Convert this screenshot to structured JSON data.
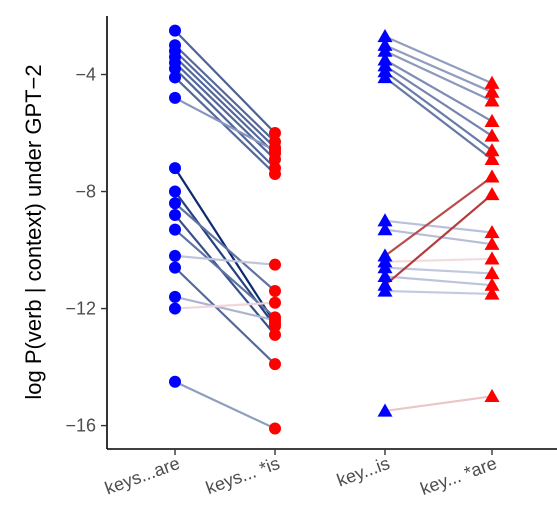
{
  "chart_data": {
    "type": "slope",
    "title": "",
    "xlabel": "",
    "ylabel": "log P(verb | context) under GPT−2",
    "categories": [
      "keys...are",
      "keys... *is",
      "key...is",
      "key... *are"
    ],
    "ylim": [
      -16.8,
      -2.0
    ],
    "yticks": [
      -4,
      -8,
      -12,
      -16
    ],
    "ytick_labels": [
      "−4",
      "−8",
      "−12",
      "−16"
    ],
    "grid": false,
    "legend": "none",
    "groups": [
      {
        "name": "",
        "from": 0,
        "to": 1,
        "marker": "circle",
        "marker_color": "#0000ff",
        "end_color": "#ff0000",
        "pairs": [
          [
            -2.5,
            -6.0
          ],
          [
            -3.0,
            -6.3
          ],
          [
            -3.2,
            -6.5
          ],
          [
            -3.4,
            -6.7
          ],
          [
            -3.6,
            -6.9
          ],
          [
            -3.8,
            -7.2
          ],
          [
            -4.1,
            -7.4
          ],
          [
            -4.8,
            -6.6
          ],
          [
            -7.2,
            -12.5
          ],
          [
            -8.0,
            -12.6
          ],
          [
            -8.4,
            -11.4
          ],
          [
            -8.8,
            -12.9
          ],
          [
            -9.3,
            -12.3
          ],
          [
            -10.2,
            -10.5
          ],
          [
            -10.6,
            -13.9
          ],
          [
            -11.6,
            -12.4
          ],
          [
            -12.0,
            -11.8
          ],
          [
            -14.5,
            -16.1
          ]
        ]
      },
      {
        "name": "",
        "from": 2,
        "to": 3,
        "marker": "triangle",
        "marker_color": "#0000ff",
        "end_color": "#ff0000",
        "pairs": [
          [
            -2.7,
            -4.3
          ],
          [
            -3.0,
            -4.6
          ],
          [
            -3.2,
            -4.9
          ],
          [
            -3.5,
            -5.6
          ],
          [
            -3.7,
            -6.1
          ],
          [
            -3.9,
            -6.6
          ],
          [
            -4.1,
            -6.9
          ],
          [
            -9.0,
            -9.4
          ],
          [
            -9.3,
            -9.8
          ],
          [
            -10.2,
            -7.5
          ],
          [
            -10.4,
            -10.3
          ],
          [
            -10.6,
            -10.8
          ],
          [
            -10.9,
            -11.2
          ],
          [
            -11.2,
            -8.1
          ],
          [
            -11.4,
            -11.5
          ],
          [
            -15.5,
            -15.0
          ]
        ]
      }
    ]
  }
}
